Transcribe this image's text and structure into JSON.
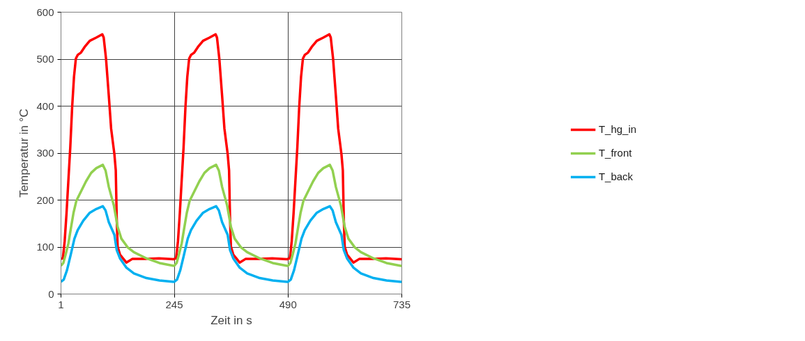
{
  "chart_data": {
    "type": "line",
    "xlabel": "Zeit in s",
    "ylabel": "Temperatur in °C",
    "xlim": [
      1,
      735
    ],
    "xticks": [
      1,
      245,
      490,
      735
    ],
    "ylim": [
      0,
      600
    ],
    "yticks": [
      0,
      100,
      200,
      300,
      400,
      500,
      600
    ],
    "grid": true,
    "legend": "right",
    "marker": "none",
    "line_style": "solid",
    "series": [
      {
        "name": "T_hg_in",
        "color": "#ff0000",
        "x": [
          1,
          5,
          9,
          13,
          17,
          21,
          25,
          29,
          33,
          37,
          44,
          52,
          63,
          77,
          90,
          93,
          98,
          104,
          109,
          116,
          119,
          121,
          123,
          128,
          142,
          155,
          185,
          212,
          244,
          245,
          249,
          253,
          257,
          261,
          265,
          269,
          273,
          277,
          281,
          288,
          296,
          307,
          321,
          334,
          337,
          342,
          348,
          353,
          360,
          363,
          365,
          367,
          372,
          386,
          399,
          429,
          456,
          488,
          490,
          494,
          498,
          502,
          506,
          510,
          514,
          518,
          522,
          526,
          533,
          541,
          552,
          566,
          579,
          582,
          587,
          593,
          598,
          605,
          608,
          610,
          612,
          617,
          631,
          644,
          674,
          701,
          733,
          735
        ],
        "values": [
          75,
          76,
          113,
          173,
          243,
          312,
          397,
          462,
          501,
          509,
          514,
          526,
          539,
          546,
          553,
          546,
          501,
          422,
          352,
          298,
          263,
          163,
          101,
          84,
          67,
          75,
          75,
          76,
          74,
          75,
          76,
          113,
          173,
          243,
          312,
          397,
          462,
          501,
          509,
          514,
          526,
          539,
          546,
          553,
          546,
          501,
          422,
          352,
          298,
          263,
          163,
          101,
          84,
          67,
          75,
          75,
          76,
          74,
          75,
          76,
          113,
          173,
          243,
          312,
          397,
          462,
          501,
          509,
          514,
          526,
          539,
          546,
          553,
          546,
          501,
          422,
          352,
          298,
          263,
          163,
          101,
          84,
          67,
          75,
          75,
          76,
          74,
          74
        ]
      },
      {
        "name": "T_front",
        "color": "#92d050",
        "x": [
          1,
          6,
          11,
          17,
          22,
          28,
          34,
          44,
          55,
          66,
          77,
          91,
          97,
          104,
          115,
          123,
          131,
          145,
          158,
          185,
          213,
          244,
          245,
          250,
          255,
          261,
          266,
          272,
          278,
          288,
          299,
          310,
          321,
          335,
          341,
          348,
          359,
          367,
          375,
          389,
          402,
          429,
          457,
          488,
          490,
          495,
          500,
          506,
          511,
          517,
          523,
          533,
          544,
          555,
          566,
          580,
          586,
          593,
          604,
          612,
          620,
          634,
          647,
          674,
          702,
          733,
          735
        ],
        "values": [
          60,
          66,
          84,
          108,
          138,
          173,
          198,
          218,
          240,
          258,
          268,
          275,
          263,
          228,
          188,
          143,
          118,
          99,
          89,
          76,
          66,
          60,
          60,
          66,
          84,
          108,
          138,
          173,
          198,
          218,
          240,
          258,
          268,
          275,
          263,
          228,
          188,
          143,
          118,
          99,
          89,
          76,
          66,
          60,
          60,
          66,
          84,
          108,
          138,
          173,
          198,
          218,
          240,
          258,
          268,
          275,
          263,
          228,
          188,
          143,
          118,
          99,
          89,
          76,
          66,
          60,
          60
        ]
      },
      {
        "name": "T_back",
        "color": "#00b0f0",
        "x": [
          1,
          7,
          14,
          22,
          30,
          37,
          49,
          63,
          77,
          91,
          97,
          104,
          116,
          121,
          128,
          142,
          158,
          185,
          213,
          244,
          245,
          251,
          258,
          266,
          274,
          281,
          293,
          307,
          321,
          335,
          341,
          348,
          360,
          365,
          372,
          386,
          402,
          429,
          457,
          488,
          490,
          496,
          503,
          511,
          519,
          526,
          538,
          552,
          566,
          580,
          586,
          593,
          605,
          610,
          617,
          631,
          647,
          674,
          702,
          733,
          735
        ],
        "values": [
          26,
          31,
          51,
          84,
          118,
          136,
          156,
          173,
          181,
          187,
          178,
          153,
          126,
          94,
          76,
          56,
          44,
          34,
          29,
          26,
          26,
          31,
          51,
          84,
          118,
          136,
          156,
          173,
          181,
          187,
          178,
          153,
          126,
          94,
          76,
          56,
          44,
          34,
          29,
          26,
          26,
          31,
          51,
          84,
          118,
          136,
          156,
          173,
          181,
          187,
          178,
          153,
          126,
          94,
          76,
          56,
          44,
          34,
          29,
          26,
          26
        ]
      }
    ]
  }
}
